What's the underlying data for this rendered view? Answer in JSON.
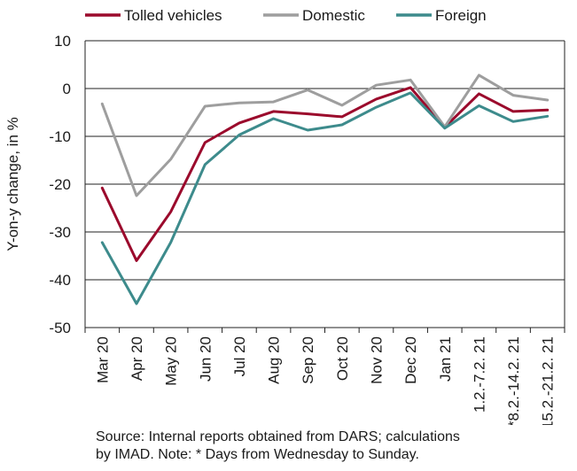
{
  "chart_data": {
    "type": "line",
    "ylabel": "Y-on-y change, in %",
    "ylim": [
      -50,
      10
    ],
    "yticks": [
      10,
      0,
      -10,
      -20,
      -30,
      -40,
      -50
    ],
    "grid": true,
    "legend_position": "top",
    "categories": [
      "Mar 20",
      "Apr 20",
      "May 20",
      "Jun 20",
      "Jul 20",
      "Aug 20",
      "Sep 20",
      "Oct 20",
      "Nov 20",
      "Dec 20",
      "Jan 21",
      "1.2.-7.2. 21",
      "*8.2.-14.2. 21",
      "15.2.-21.2. 21"
    ],
    "series": [
      {
        "name": "Tolled vehicles",
        "color": "#9b0a2c",
        "values": [
          -20.8,
          -36.0,
          -25.8,
          -11.3,
          -7.2,
          -4.8,
          -5.3,
          -5.9,
          -2.2,
          0.2,
          -8.1,
          -1.1,
          -4.8,
          -4.5
        ]
      },
      {
        "name": "Domestic",
        "color": "#9e9e9e",
        "values": [
          -3.2,
          -22.4,
          -14.8,
          -3.7,
          -3.0,
          -2.8,
          -0.3,
          -3.5,
          0.7,
          1.8,
          -8.0,
          2.8,
          -1.4,
          -2.4
        ]
      },
      {
        "name": "Foreign",
        "color": "#3d8b8c",
        "values": [
          -32.2,
          -45.0,
          -32.2,
          -15.9,
          -9.7,
          -6.3,
          -8.7,
          -7.6,
          -3.9,
          -0.9,
          -8.3,
          -3.6,
          -6.9,
          -5.8
        ]
      }
    ]
  },
  "source_note": {
    "line1": "Source: Internal reports obtained from DARS; calculations",
    "line2": "by IMAD. Note: * Days from Wednesday to Sunday."
  }
}
